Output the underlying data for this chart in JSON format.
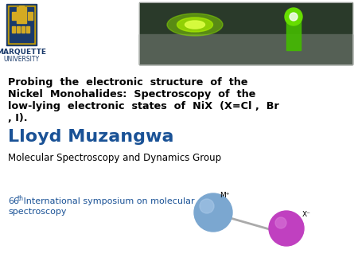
{
  "bg_color": "#ffffff",
  "title_lines": [
    "Probing  the  electronic  structure  of  the",
    "Nickel  Monohalides:  Spectroscopy  of  the",
    "low-lying  electronic  states  of  NiX  (X=Cl ,  Br",
    ", I)."
  ],
  "author": "Lloyd Muzangwa",
  "author_color": "#1a5296",
  "group_text": "Molecular Spectroscopy and Dynamics Group",
  "conf_line1_num": "66",
  "conf_super": "th",
  "conf_line1_rest": " International symposium on molecular",
  "conf_line2": "spectroscopy",
  "conf_color": "#1a5296",
  "ni_color": "#7ba7d0",
  "ni_highlight": "#a8c8e8",
  "x_color": "#c040c0",
  "x_highlight": "#d878d8",
  "bond_color": "#aaaaaa",
  "logo_color": "#1a3a6b",
  "logo_gold": "#c8a020",
  "photo_bg": "#2a3a2a",
  "photo_green1": "#88dd00",
  "photo_green2": "#44aa00",
  "photo_green3": "#ccff44"
}
